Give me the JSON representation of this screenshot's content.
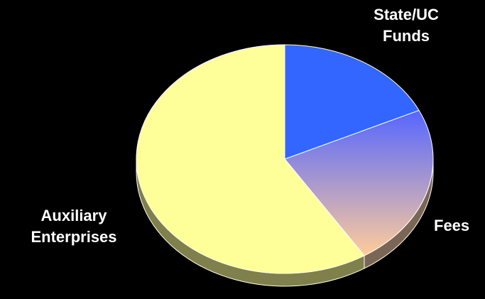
{
  "chart_data": {
    "type": "pie",
    "style": "3d",
    "categories": [
      "State/UC Funds",
      "Fees",
      "Auxiliary Enterprises"
    ],
    "values": [
      18,
      23,
      59
    ],
    "label_lines": [
      [
        "State/UC",
        "Funds"
      ],
      [
        "Fees"
      ],
      [
        "Auxiliary",
        "Enterprises"
      ]
    ],
    "colors": [
      {
        "top": "#3366ff",
        "side": "#1f3d99"
      },
      {
        "top_start": "#5566ff",
        "top_end": "#ffcc99",
        "side": "#7a6655"
      },
      {
        "top": "#ffff99",
        "side": "#80804c"
      }
    ],
    "start_angle_deg": -90,
    "direction": "clockwise",
    "legend": "none",
    "title": ""
  }
}
